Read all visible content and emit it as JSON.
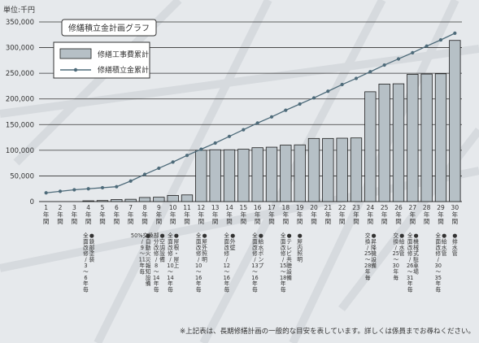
{
  "footnote": "※上記表は、長期修繕計画の一般的な目安を表しています。詳しくは係員までお尋ねください。",
  "colors": {
    "bar_fill": "#b6c0c6",
    "bar_stroke": "#1e1e1e",
    "line": "#4e6b7a",
    "grid": "#333333",
    "background": "#e6e9ec"
  },
  "chart_data": {
    "type": "bar",
    "title": "修繕積立金計画グラフ",
    "unit_label": "単位:千円",
    "ylim": [
      0,
      350000
    ],
    "yticks": [
      0,
      50000,
      100000,
      150000,
      200000,
      250000,
      300000,
      350000
    ],
    "ytick_labels": [
      "0",
      "50,000",
      "100,000",
      "150,000",
      "200,000",
      "250,000",
      "300,000",
      "350,000"
    ],
    "grid": true,
    "legend_position": "top-left",
    "categories": [
      "1年間",
      "2年間",
      "3年間",
      "4年間",
      "5年間",
      "6年間",
      "7年間",
      "8年間",
      "9年間",
      "10年間",
      "11年間",
      "12年間",
      "13年間",
      "14年間",
      "15年間",
      "16年間",
      "17年間",
      "18年間",
      "19年間",
      "20年間",
      "21年間",
      "22年間",
      "23年間",
      "24年間",
      "25年間",
      "26年間",
      "27年間",
      "28年間",
      "29年間",
      "30年間"
    ],
    "series": [
      {
        "name": "修繕工事費累計",
        "type": "bar",
        "values": [
          0,
          0,
          0,
          1500,
          2000,
          4000,
          4500,
          8000,
          8500,
          12000,
          13000,
          100000,
          101000,
          101000,
          102000,
          105000,
          106000,
          110000,
          110500,
          123000,
          123000,
          123500,
          124000,
          214000,
          229000,
          229500,
          248000,
          248500,
          249000,
          314000
        ]
      },
      {
        "name": "修繕積立金累計",
        "type": "line",
        "values": [
          17000,
          20000,
          23000,
          25000,
          27000,
          29000,
          40000,
          53000,
          65000,
          77000,
          90000,
          102000,
          114000,
          127000,
          140000,
          153000,
          165000,
          178000,
          190000,
          202000,
          215000,
          228000,
          240000,
          253000,
          266000,
          278000,
          290000,
          303000,
          315000,
          328000
        ]
      }
    ],
    "annotations": [
      {
        "x": "4年間",
        "lines": [
          "全面改修",
          "/",
          "3",
          "〜",
          "6",
          "年毎"
        ],
        "marker": "●鉄部塗装"
      },
      {
        "x": "8年間",
        "lines": [
          "50%交換",
          "/",
          "9",
          "〜",
          "11",
          "年毎"
        ],
        "marker": "●自動火災報知設備"
      },
      {
        "x": "9年間",
        "lines": [
          "部分改修",
          "/",
          "8",
          "〜",
          "14",
          "年毎"
        ],
        "marker": "●空調設備"
      },
      {
        "x": "10年間",
        "lines": [
          "全面改修",
          "/",
          "10",
          "〜",
          "14",
          "年毎"
        ],
        "marker": "●屋根・屋上"
      },
      {
        "x": "12年間",
        "lines": [
          "全面改修",
          "/",
          "10",
          "〜",
          "16",
          "年毎"
        ],
        "marker": "●屋外照明"
      },
      {
        "x": "14年間",
        "lines": [
          "全面改修",
          "/",
          "12",
          "〜",
          "16",
          "年毎"
        ],
        "marker": "●外壁"
      },
      {
        "x": "16年間",
        "lines": [
          "全面改修",
          "/",
          "13",
          "〜",
          "16",
          "年毎"
        ],
        "marker": "●給水ポンプ"
      },
      {
        "x": "18年間",
        "lines": [
          "全面改修",
          "/",
          "15",
          "〜",
          "18",
          "年毎"
        ],
        "marker": "●テレビ共聴設備"
      },
      {
        "x": "19年間",
        "lines": [],
        "marker": "●屋内照明"
      },
      {
        "x": "24年間",
        "lines": [
          "交",
          "換",
          "/",
          "25",
          "〜",
          "28",
          "年毎"
        ],
        "marker": "●昇降機設備"
      },
      {
        "x": "26年間",
        "lines": [
          "交",
          "換",
          "/",
          "25",
          "〜",
          "30",
          "年毎"
        ],
        "marker": "●給水管"
      },
      {
        "x": "27年間",
        "lines": [
          "全面改修",
          "/",
          "26",
          "〜",
          "31",
          "年毎"
        ],
        "marker": "●機械式駐車場"
      },
      {
        "x": "29年間",
        "lines": [
          "全面改修",
          "/",
          "30",
          "〜",
          "35",
          "年毎"
        ],
        "marker": "●給水管"
      },
      {
        "x": "30年間",
        "lines": [],
        "marker": "●排水管"
      }
    ]
  }
}
